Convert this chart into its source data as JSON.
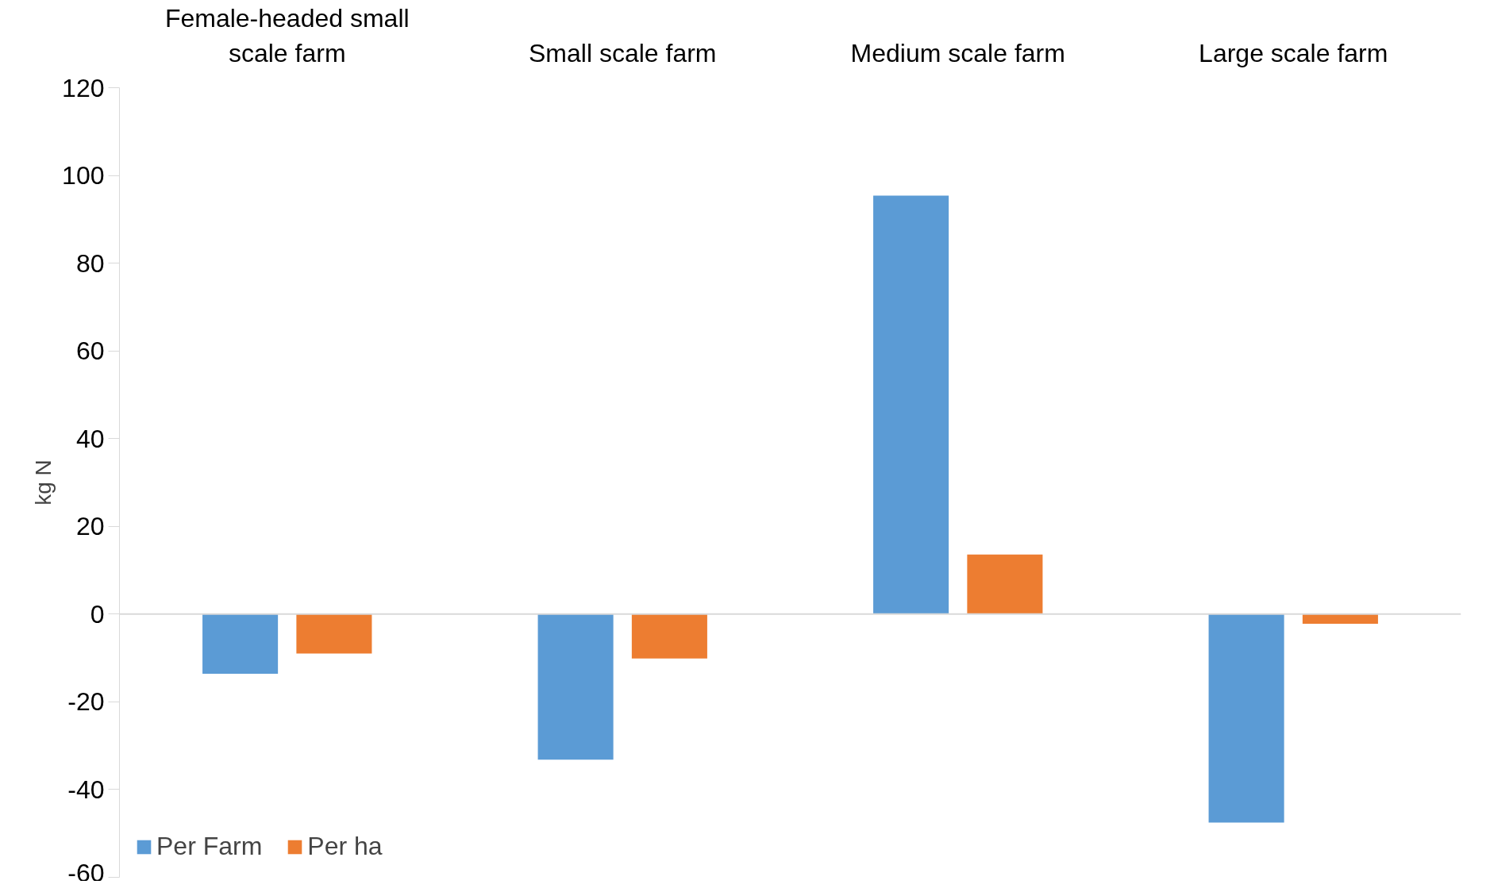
{
  "chart_data": {
    "type": "bar",
    "ylabel": "kg N",
    "categories": [
      "Female-headed small scale farm",
      "Small scale farm",
      "Medium scale farm",
      "Large scale farm"
    ],
    "series": [
      {
        "name": "Per Farm",
        "color": "#5b9bd5",
        "values": [
          -13.6,
          -33.2,
          95.4,
          -47.5
        ]
      },
      {
        "name": "Per ha",
        "color": "#ed7d31",
        "values": [
          -9.0,
          -10.1,
          13.6,
          -2.2
        ]
      }
    ],
    "ylim": [
      -60,
      120
    ],
    "yticks": [
      -60,
      -40,
      -20,
      0,
      20,
      40,
      60,
      80,
      100,
      120
    ],
    "ref_lines": [
      {
        "axis": "y",
        "value": 0,
        "color": "#d9d9d9"
      }
    ],
    "legend": "bottom left"
  }
}
